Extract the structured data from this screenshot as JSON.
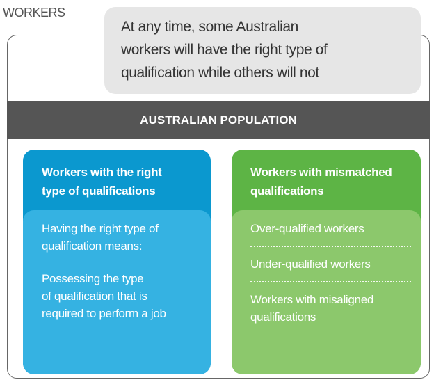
{
  "label": "WORKERS",
  "callout": [
    "At any time, some Australian",
    "workers will have the right type of",
    "qualification while others will not"
  ],
  "banner": "AUSTRALIAN POPULATION",
  "left": {
    "title": [
      "Workers with the right",
      "type of qualifications"
    ],
    "definition": [
      "Having the right type of",
      "qualification means:"
    ],
    "meaning": [
      "Possessing the type",
      "of qualification that is",
      "required to perform a job"
    ]
  },
  "right": {
    "title": [
      "Workers with mismatched",
      "qualifications"
    ],
    "items": [
      [
        "Over-qualified workers"
      ],
      [
        "Under-qualified workers"
      ],
      [
        "Workers with misaligned",
        "qualifications"
      ]
    ]
  }
}
